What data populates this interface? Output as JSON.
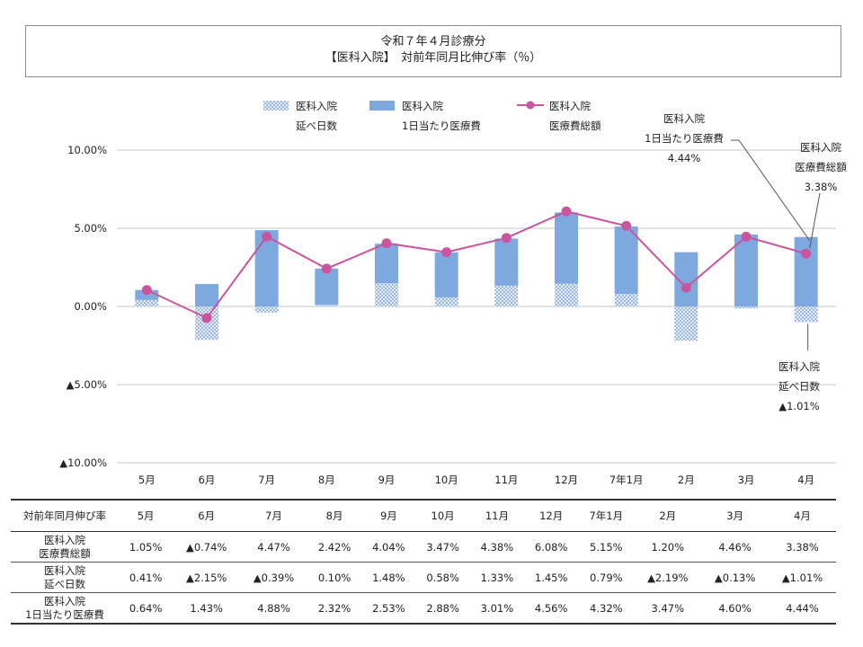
{
  "title": {
    "line1": "令和７年４月診療分",
    "line2": "【医科入院】　対前年同月比伸び率（％）"
  },
  "chart_data": {
    "type": "bar",
    "categories": [
      "5月",
      "6月",
      "7月",
      "8月",
      "9月",
      "10月",
      "11月",
      "12月",
      "7年1月",
      "2月",
      "3月",
      "4月"
    ],
    "y_ticks": [
      "10.00%",
      "5.00%",
      "0.00%",
      "▲5.00%",
      "▲10.00%"
    ],
    "ylim": [
      -10,
      10
    ],
    "grid": true,
    "legend_position": "top",
    "series": [
      {
        "name": [
          "医科入院",
          "延べ日数"
        ],
        "type": "bar",
        "values": [
          0.41,
          -2.15,
          -0.39,
          0.1,
          1.48,
          0.58,
          1.33,
          1.45,
          0.79,
          -2.19,
          -0.13,
          -1.01
        ]
      },
      {
        "name": [
          "医科入院",
          "1日当たり医療費"
        ],
        "type": "bar",
        "values": [
          0.64,
          1.43,
          4.88,
          2.32,
          2.53,
          2.88,
          3.01,
          4.56,
          4.32,
          3.47,
          4.6,
          4.44
        ]
      },
      {
        "name": [
          "医科入院",
          "医療費総額"
        ],
        "type": "line",
        "values": [
          1.05,
          -0.74,
          4.47,
          2.42,
          4.04,
          3.47,
          4.38,
          6.08,
          5.15,
          1.2,
          4.46,
          3.38
        ]
      }
    ],
    "annotations": [
      {
        "lines": [
          "医科入院",
          "1日当たり医療費",
          "4.44%"
        ]
      },
      {
        "lines": [
          "医科入院",
          "医療費総額",
          "3.38%"
        ]
      },
      {
        "lines": [
          "医科入院",
          "延べ日数",
          "▲1.01%"
        ]
      }
    ],
    "colors": {
      "bar": "#7ea8e0",
      "bar_pattern": "#5f8fd0",
      "line": "#c9559f",
      "grid": "#c8c8c8"
    }
  },
  "table": {
    "header_label": "対前年同月伸び率",
    "months": [
      "5月",
      "6月",
      "7月",
      "8月",
      "9月",
      "10月",
      "11月",
      "12月",
      "7年1月",
      "2月",
      "3月",
      "4月"
    ],
    "rows": [
      {
        "label": [
          "医科入院",
          "医療費総額"
        ],
        "values": [
          "1.05%",
          "▲0.74%",
          "4.47%",
          "2.42%",
          "4.04%",
          "3.47%",
          "4.38%",
          "6.08%",
          "5.15%",
          "1.20%",
          "4.46%",
          "3.38%"
        ]
      },
      {
        "label": [
          "医科入院",
          "延べ日数"
        ],
        "values": [
          "0.41%",
          "▲2.15%",
          "▲0.39%",
          "0.10%",
          "1.48%",
          "0.58%",
          "1.33%",
          "1.45%",
          "0.79%",
          "▲2.19%",
          "▲0.13%",
          "▲1.01%"
        ]
      },
      {
        "label": [
          "医科入院",
          "1日当たり医療費"
        ],
        "values": [
          "0.64%",
          "1.43%",
          "4.88%",
          "2.32%",
          "2.53%",
          "2.88%",
          "3.01%",
          "4.56%",
          "4.32%",
          "3.47%",
          "4.60%",
          "4.44%"
        ]
      }
    ]
  }
}
